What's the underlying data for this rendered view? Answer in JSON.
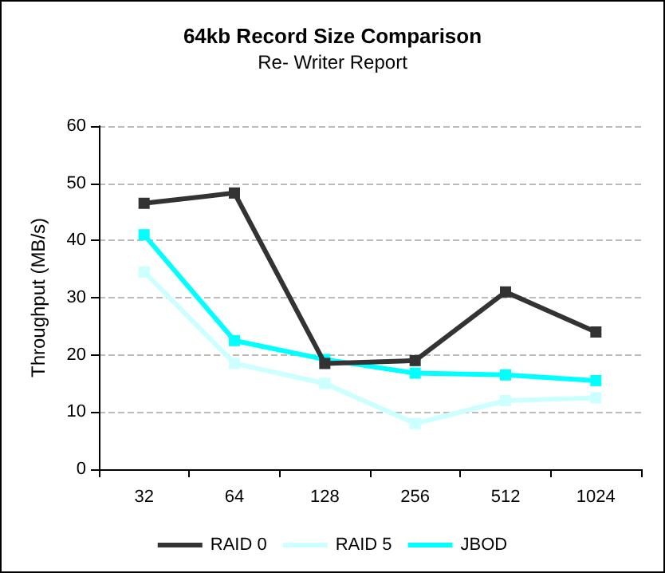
{
  "chart_data": {
    "type": "line",
    "title": "64kb Record Size Comparison",
    "subtitle": "Re- Writer Report",
    "ylabel": "Throughput (MB/s)",
    "categories": [
      "32",
      "64",
      "128",
      "256",
      "512",
      "1024"
    ],
    "series": [
      {
        "name": "RAID 0",
        "color": "#333333",
        "values": [
          46.5,
          48.3,
          18.5,
          19,
          31,
          24
        ]
      },
      {
        "name": "RAID 5",
        "color": "#ccffff",
        "values": [
          34.5,
          18.5,
          15,
          8,
          12,
          12.5
        ]
      },
      {
        "name": "JBOD",
        "color": "#00ffff",
        "values": [
          41,
          22.5,
          19.2,
          16.8,
          16.5,
          15.5
        ]
      }
    ],
    "ylim": [
      0,
      60
    ],
    "yticks": [
      0,
      10,
      20,
      30,
      40,
      50,
      60
    ],
    "grid": "y",
    "legend": "bottom",
    "marker": "square",
    "line_style": "solid"
  }
}
